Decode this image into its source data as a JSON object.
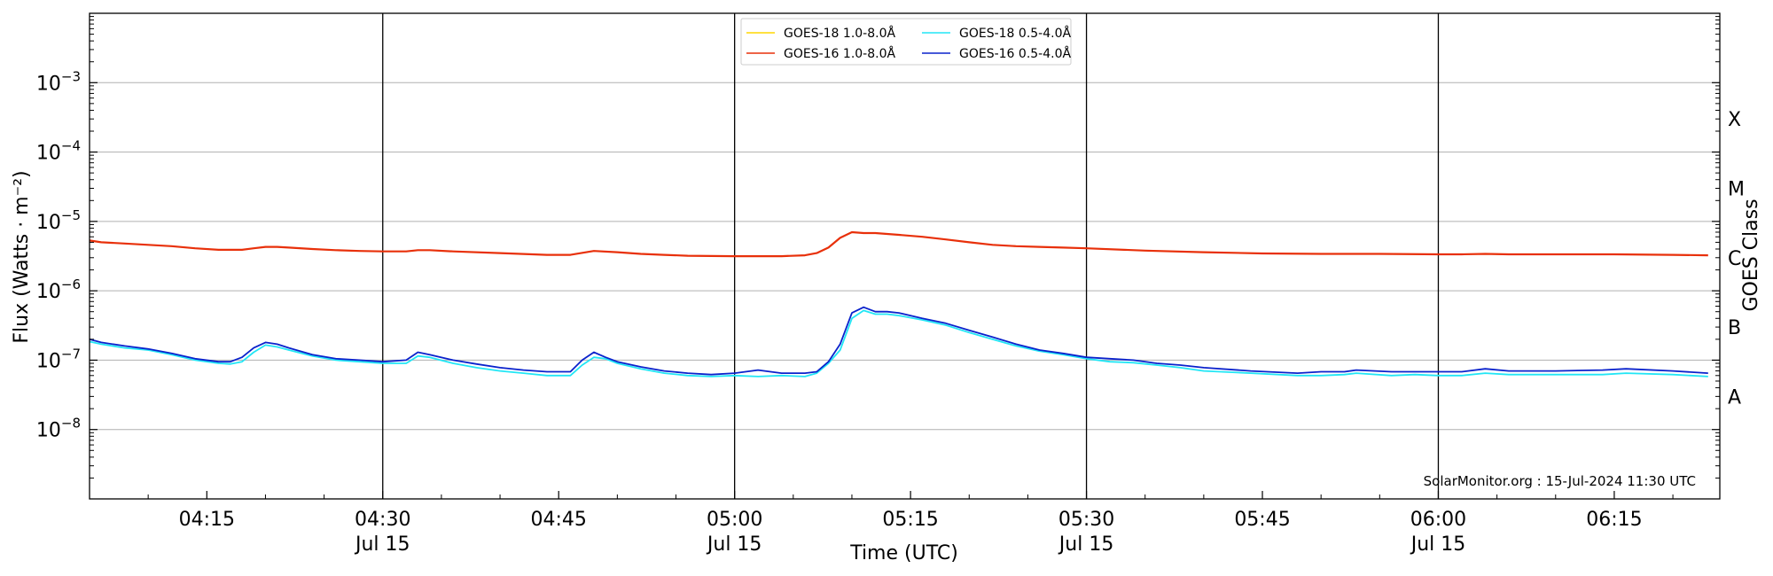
{
  "chart_data": {
    "type": "line",
    "title": "",
    "xlabel": "Time (UTC)",
    "ylabel": "Flux (Watts · m⁻²)",
    "y2label": "GOES Class",
    "yscale": "log",
    "ylim": [
      1e-09,
      0.01
    ],
    "xlim": [
      "04:05",
      "06:24"
    ],
    "grid": "horizontal at decades",
    "legend_position": "top-center",
    "credit": "SolarMonitor.org : 15-Jul-2024 11:30 UTC",
    "x_ticks": [
      {
        "time": "04:15",
        "label": "04:15",
        "date": ""
      },
      {
        "time": "04:30",
        "label": "04:30",
        "date": "Jul 15"
      },
      {
        "time": "04:45",
        "label": "04:45",
        "date": ""
      },
      {
        "time": "05:00",
        "label": "05:00",
        "date": "Jul 15"
      },
      {
        "time": "05:15",
        "label": "05:15",
        "date": ""
      },
      {
        "time": "05:30",
        "label": "05:30",
        "date": "Jul 15"
      },
      {
        "time": "05:45",
        "label": "05:45",
        "date": ""
      },
      {
        "time": "06:00",
        "label": "06:00",
        "date": "Jul 15"
      },
      {
        "time": "06:15",
        "label": "06:15",
        "date": ""
      }
    ],
    "y_ticks": [
      {
        "value": 1e-08,
        "base": "10",
        "exp": "−8"
      },
      {
        "value": 1e-07,
        "base": "10",
        "exp": "−7"
      },
      {
        "value": 1e-06,
        "base": "10",
        "exp": "−6"
      },
      {
        "value": 1e-05,
        "base": "10",
        "exp": "−5"
      },
      {
        "value": 0.0001,
        "base": "10",
        "exp": "−4"
      },
      {
        "value": 0.001,
        "base": "10",
        "exp": "−3"
      }
    ],
    "goes_classes": [
      {
        "label": "A",
        "value": 3e-08
      },
      {
        "label": "B",
        "value": 3e-07
      },
      {
        "label": "C",
        "value": 3e-06
      },
      {
        "label": "M",
        "value": 3e-05
      },
      {
        "label": "X",
        "value": 0.0003
      }
    ],
    "vlines": [
      "04:30",
      "05:00",
      "05:30",
      "06:00"
    ],
    "series": [
      {
        "name": "GOES-18 1.0-8.0Å",
        "color": "#ffd700",
        "visible": false,
        "x": [],
        "y": []
      },
      {
        "name": "GOES-16 1.0-8.0Å",
        "color": "#e8300a",
        "x": [
          "04:05",
          "04:06",
          "04:08",
          "04:10",
          "04:12",
          "04:14",
          "04:16",
          "04:18",
          "04:19",
          "04:20",
          "04:21",
          "04:22",
          "04:24",
          "04:26",
          "04:28",
          "04:30",
          "04:32",
          "04:33",
          "04:34",
          "04:36",
          "04:40",
          "04:44",
          "04:46",
          "04:48",
          "04:50",
          "04:52",
          "04:54",
          "04:56",
          "05:00",
          "05:04",
          "05:06",
          "05:07",
          "05:08",
          "05:09",
          "05:10",
          "05:11",
          "05:12",
          "05:14",
          "05:16",
          "05:18",
          "05:20",
          "05:22",
          "05:24",
          "05:26",
          "05:28",
          "05:30",
          "05:35",
          "05:40",
          "05:45",
          "05:50",
          "05:55",
          "06:00",
          "06:02",
          "06:04",
          "06:06",
          "06:10",
          "06:15",
          "06:20",
          "06:23"
        ],
        "y": [
          5.3e-06,
          5e-06,
          4.8e-06,
          4.6e-06,
          4.4e-06,
          4.1e-06,
          3.9e-06,
          3.9e-06,
          4.1e-06,
          4.3e-06,
          4.3e-06,
          4.2e-06,
          4e-06,
          3.85e-06,
          3.75e-06,
          3.7e-06,
          3.7e-06,
          3.85e-06,
          3.85e-06,
          3.7e-06,
          3.5e-06,
          3.3e-06,
          3.3e-06,
          3.75e-06,
          3.6e-06,
          3.4e-06,
          3.3e-06,
          3.2e-06,
          3.15e-06,
          3.15e-06,
          3.25e-06,
          3.5e-06,
          4.2e-06,
          5.8e-06,
          7e-06,
          6.8e-06,
          6.8e-06,
          6.4e-06,
          6e-06,
          5.5e-06,
          5e-06,
          4.6e-06,
          4.4e-06,
          4.3e-06,
          4.2e-06,
          4.1e-06,
          3.8e-06,
          3.6e-06,
          3.45e-06,
          3.4e-06,
          3.4e-06,
          3.35e-06,
          3.35e-06,
          3.4e-06,
          3.35e-06,
          3.35e-06,
          3.35e-06,
          3.3e-06,
          3.25e-06
        ]
      },
      {
        "name": "GOES-18 0.5-4.0Å",
        "color": "#22e6f5",
        "x": [
          "04:05",
          "04:06",
          "04:08",
          "04:10",
          "04:12",
          "04:14",
          "04:16",
          "04:17",
          "04:18",
          "04:19",
          "04:20",
          "04:21",
          "04:22",
          "04:24",
          "04:26",
          "04:28",
          "04:30",
          "04:32",
          "04:33",
          "04:34",
          "04:36",
          "04:38",
          "04:40",
          "04:42",
          "04:44",
          "04:46",
          "04:47",
          "04:48",
          "04:49",
          "04:50",
          "04:52",
          "04:54",
          "04:56",
          "04:58",
          "05:00",
          "05:02",
          "05:04",
          "05:06",
          "05:07",
          "05:08",
          "05:09",
          "05:10",
          "05:11",
          "05:12",
          "05:13",
          "05:14",
          "05:16",
          "05:18",
          "05:20",
          "05:22",
          "05:24",
          "05:26",
          "05:28",
          "05:30",
          "05:32",
          "05:34",
          "05:36",
          "05:38",
          "05:40",
          "05:44",
          "05:48",
          "05:50",
          "05:52",
          "05:53",
          "05:56",
          "05:58",
          "06:00",
          "06:02",
          "06:04",
          "06:06",
          "06:10",
          "06:14",
          "06:16",
          "06:20",
          "06:23"
        ],
        "y": [
          1.85e-07,
          1.7e-07,
          1.5e-07,
          1.4e-07,
          1.2e-07,
          1e-07,
          9e-08,
          8.8e-08,
          9.5e-08,
          1.3e-07,
          1.65e-07,
          1.55e-07,
          1.4e-07,
          1.15e-07,
          1e-07,
          9.5e-08,
          9e-08,
          9e-08,
          1.15e-07,
          1.1e-07,
          9e-08,
          7.8e-08,
          7e-08,
          6.5e-08,
          6e-08,
          6e-08,
          8.5e-08,
          1.1e-07,
          1.05e-07,
          9e-08,
          7.5e-08,
          6.5e-08,
          6e-08,
          5.8e-08,
          6e-08,
          5.8e-08,
          6e-08,
          5.8e-08,
          6.5e-08,
          9e-08,
          1.4e-07,
          4e-07,
          5.2e-07,
          4.6e-07,
          4.6e-07,
          4.4e-07,
          3.8e-07,
          3.2e-07,
          2.5e-07,
          2e-07,
          1.6e-07,
          1.35e-07,
          1.2e-07,
          1.05e-07,
          9.5e-08,
          9.2e-08,
          8.5e-08,
          7.8e-08,
          7e-08,
          6.5e-08,
          6e-08,
          6e-08,
          6.2e-08,
          6.5e-08,
          6e-08,
          6.2e-08,
          6e-08,
          6e-08,
          6.5e-08,
          6.2e-08,
          6.2e-08,
          6.2e-08,
          6.5e-08,
          6.2e-08,
          5.8e-08
        ]
      },
      {
        "name": "GOES-16 0.5-4.0Å",
        "color": "#0a22cc",
        "x": [
          "04:05",
          "04:06",
          "04:08",
          "04:10",
          "04:12",
          "04:14",
          "04:16",
          "04:17",
          "04:18",
          "04:19",
          "04:20",
          "04:21",
          "04:22",
          "04:24",
          "04:26",
          "04:28",
          "04:30",
          "04:32",
          "04:33",
          "04:34",
          "04:36",
          "04:38",
          "04:40",
          "04:42",
          "04:44",
          "04:46",
          "04:47",
          "04:48",
          "04:49",
          "04:50",
          "04:52",
          "04:54",
          "04:56",
          "04:58",
          "05:00",
          "05:02",
          "05:04",
          "05:06",
          "05:07",
          "05:08",
          "05:09",
          "05:10",
          "05:11",
          "05:12",
          "05:13",
          "05:14",
          "05:16",
          "05:18",
          "05:20",
          "05:22",
          "05:24",
          "05:26",
          "05:28",
          "05:30",
          "05:32",
          "05:34",
          "05:36",
          "05:38",
          "05:40",
          "05:44",
          "05:48",
          "05:50",
          "05:52",
          "05:53",
          "05:56",
          "05:58",
          "06:00",
          "06:02",
          "06:04",
          "06:06",
          "06:10",
          "06:14",
          "06:16",
          "06:20",
          "06:23"
        ],
        "y": [
          2e-07,
          1.8e-07,
          1.6e-07,
          1.45e-07,
          1.25e-07,
          1.05e-07,
          9.5e-08,
          9.5e-08,
          1.1e-07,
          1.5e-07,
          1.8e-07,
          1.7e-07,
          1.5e-07,
          1.2e-07,
          1.05e-07,
          1e-07,
          9.5e-08,
          1e-07,
          1.3e-07,
          1.2e-07,
          1e-07,
          8.8e-08,
          7.8e-08,
          7.2e-08,
          6.8e-08,
          6.8e-08,
          1e-07,
          1.3e-07,
          1.1e-07,
          9.5e-08,
          8e-08,
          7e-08,
          6.5e-08,
          6.2e-08,
          6.5e-08,
          7.2e-08,
          6.5e-08,
          6.5e-08,
          6.8e-08,
          9.5e-08,
          1.7e-07,
          4.8e-07,
          5.8e-07,
          5e-07,
          5e-07,
          4.8e-07,
          4e-07,
          3.4e-07,
          2.7e-07,
          2.15e-07,
          1.7e-07,
          1.4e-07,
          1.25e-07,
          1.1e-07,
          1.05e-07,
          1e-07,
          9e-08,
          8.5e-08,
          7.8e-08,
          7e-08,
          6.5e-08,
          6.8e-08,
          6.8e-08,
          7.2e-08,
          6.8e-08,
          6.8e-08,
          6.8e-08,
          6.8e-08,
          7.5e-08,
          7e-08,
          7e-08,
          7.2e-08,
          7.5e-08,
          7e-08,
          6.5e-08
        ]
      }
    ]
  }
}
